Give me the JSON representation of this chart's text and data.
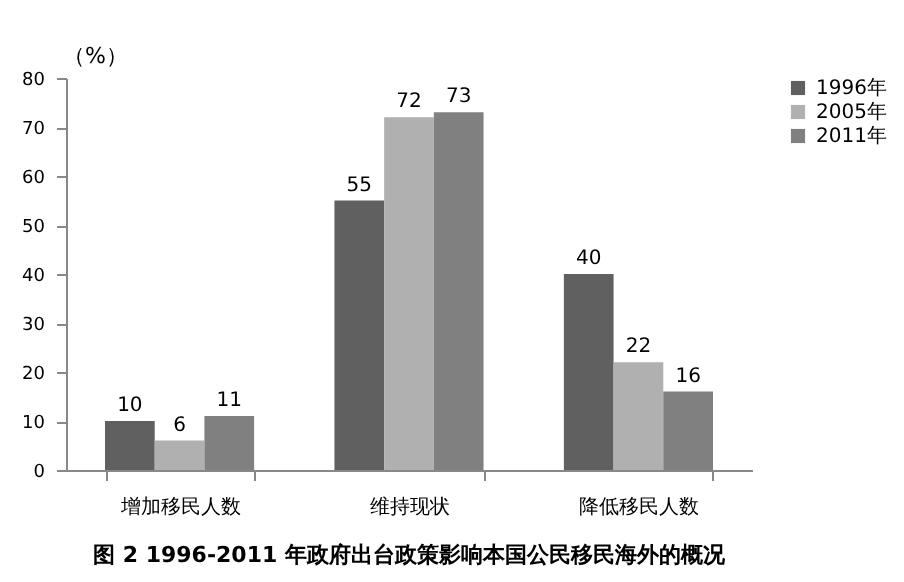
{
  "chart_data": {
    "type": "bar",
    "title": "图 2   1996-2011 年政府出台政策影响本国公民移民海外的概况",
    "ylabel": "（%）",
    "categories": [
      "增加移民人数",
      "维持现状",
      "降低移民人数"
    ],
    "series": [
      {
        "name": "1996年",
        "color": "#606060",
        "values": [
          10,
          55,
          40
        ]
      },
      {
        "name": "2005年",
        "color": "#b0b0b0",
        "values": [
          6,
          72,
          22
        ]
      },
      {
        "name": "2011年",
        "color": "#808080",
        "values": [
          11,
          73,
          16
        ]
      }
    ],
    "ylim": [
      0,
      80
    ],
    "yticks": [
      0,
      10,
      20,
      30,
      40,
      50,
      60,
      70,
      80
    ],
    "grid": false,
    "legend": "right",
    "data_labels": true
  }
}
